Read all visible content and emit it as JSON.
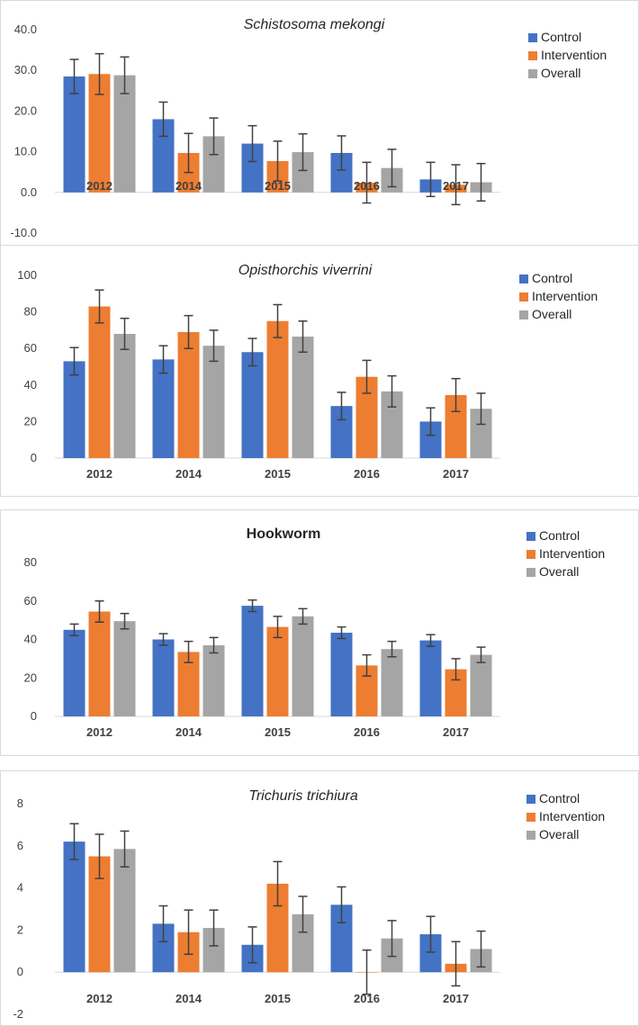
{
  "colors": {
    "control": "#4472c4",
    "intervention": "#ed7d31",
    "overall": "#a5a5a5",
    "axis": "#d9d9d9",
    "error": "#404040"
  },
  "chart_data": [
    {
      "type": "bar",
      "title": "Schistosoma mekongi",
      "title_style": "italic",
      "categories": [
        "2012",
        "2014",
        "2015",
        "2016",
        "2017"
      ],
      "ylim": [
        -10,
        40
      ],
      "yticks": [
        -10,
        0,
        10,
        20,
        30,
        40
      ],
      "ytick_labels": [
        "-10.0",
        "0.0",
        "10.0",
        "20.0",
        "30.0",
        "40.0"
      ],
      "series": [
        {
          "name": "Control",
          "values": [
            28.5,
            18.0,
            12.0,
            9.7,
            3.2
          ],
          "errors": [
            4.2,
            4.2,
            4.4,
            4.2,
            4.2
          ]
        },
        {
          "name": "Intervention",
          "values": [
            29.1,
            9.7,
            7.7,
            2.4,
            1.9
          ],
          "errors": [
            5.0,
            4.8,
            4.9,
            5.0,
            4.9
          ]
        },
        {
          "name": "Overall",
          "values": [
            28.8,
            13.8,
            9.9,
            6.0,
            2.5
          ],
          "errors": [
            4.5,
            4.5,
            4.5,
            4.6,
            4.6
          ]
        }
      ],
      "legend": [
        "Control",
        "Intervention",
        "Overall"
      ],
      "legend_position": "top-right"
    },
    {
      "type": "bar",
      "title": "Opisthorchis viverrini",
      "title_style": "italic",
      "categories": [
        "2012",
        "2014",
        "2015",
        "2016",
        "2017"
      ],
      "ylim": [
        0,
        100
      ],
      "yticks": [
        0,
        20,
        40,
        60,
        80,
        100
      ],
      "ytick_labels": [
        "0",
        "20",
        "40",
        "60",
        "80",
        "100"
      ],
      "series": [
        {
          "name": "Control",
          "values": [
            53,
            54,
            58,
            28.5,
            20
          ],
          "errors": [
            7.5,
            7.5,
            7.5,
            7.5,
            7.5
          ]
        },
        {
          "name": "Intervention",
          "values": [
            83,
            69,
            75,
            44.5,
            34.5
          ],
          "errors": [
            9,
            9,
            9,
            9,
            9
          ]
        },
        {
          "name": "Overall",
          "values": [
            68,
            61.5,
            66.5,
            36.5,
            27
          ],
          "errors": [
            8.5,
            8.5,
            8.5,
            8.5,
            8.5
          ]
        }
      ],
      "legend": [
        "Control",
        "Intervention",
        "Overall"
      ],
      "legend_position": "top-right"
    },
    {
      "type": "bar",
      "title": "Hookworm",
      "title_style": "bold",
      "categories": [
        "2012",
        "2014",
        "2015",
        "2016",
        "2017"
      ],
      "ylim": [
        0,
        80
      ],
      "yticks": [
        0,
        20,
        40,
        60,
        80
      ],
      "ytick_labels": [
        "0",
        "20",
        "40",
        "60",
        "80"
      ],
      "series": [
        {
          "name": "Control",
          "values": [
            45,
            40,
            57.5,
            43.5,
            39.5
          ],
          "errors": [
            3,
            3,
            3,
            3,
            3
          ]
        },
        {
          "name": "Intervention",
          "values": [
            54.5,
            33.5,
            46.5,
            26.5,
            24.5
          ],
          "errors": [
            5.5,
            5.5,
            5.5,
            5.5,
            5.5
          ]
        },
        {
          "name": "Overall",
          "values": [
            49.5,
            37,
            52,
            35,
            32
          ],
          "errors": [
            4,
            4,
            4,
            4,
            4
          ]
        }
      ],
      "legend": [
        "Control",
        "Intervention",
        "Overall"
      ],
      "legend_position": "top-right"
    },
    {
      "type": "bar",
      "title": "Trichuris trichiura",
      "title_style": "italic",
      "categories": [
        "2012",
        "2014",
        "2015",
        "2016",
        "2017"
      ],
      "ylim": [
        -2,
        8
      ],
      "yticks": [
        -2,
        0,
        2,
        4,
        6,
        8
      ],
      "ytick_labels": [
        "-2",
        "0",
        "2",
        "4",
        "6",
        "8"
      ],
      "series": [
        {
          "name": "Control",
          "values": [
            6.2,
            2.3,
            1.3,
            3.2,
            1.8
          ],
          "errors": [
            0.85,
            0.85,
            0.85,
            0.85,
            0.85
          ]
        },
        {
          "name": "Intervention",
          "values": [
            5.5,
            1.9,
            4.2,
            0.0,
            0.4
          ],
          "errors": [
            1.05,
            1.05,
            1.05,
            1.05,
            1.05
          ]
        },
        {
          "name": "Overall",
          "values": [
            5.85,
            2.1,
            2.75,
            1.6,
            1.1
          ],
          "errors": [
            0.85,
            0.85,
            0.85,
            0.85,
            0.85
          ]
        }
      ],
      "legend": [
        "Control",
        "Intervention",
        "Overall"
      ],
      "legend_position": "top-right"
    }
  ]
}
